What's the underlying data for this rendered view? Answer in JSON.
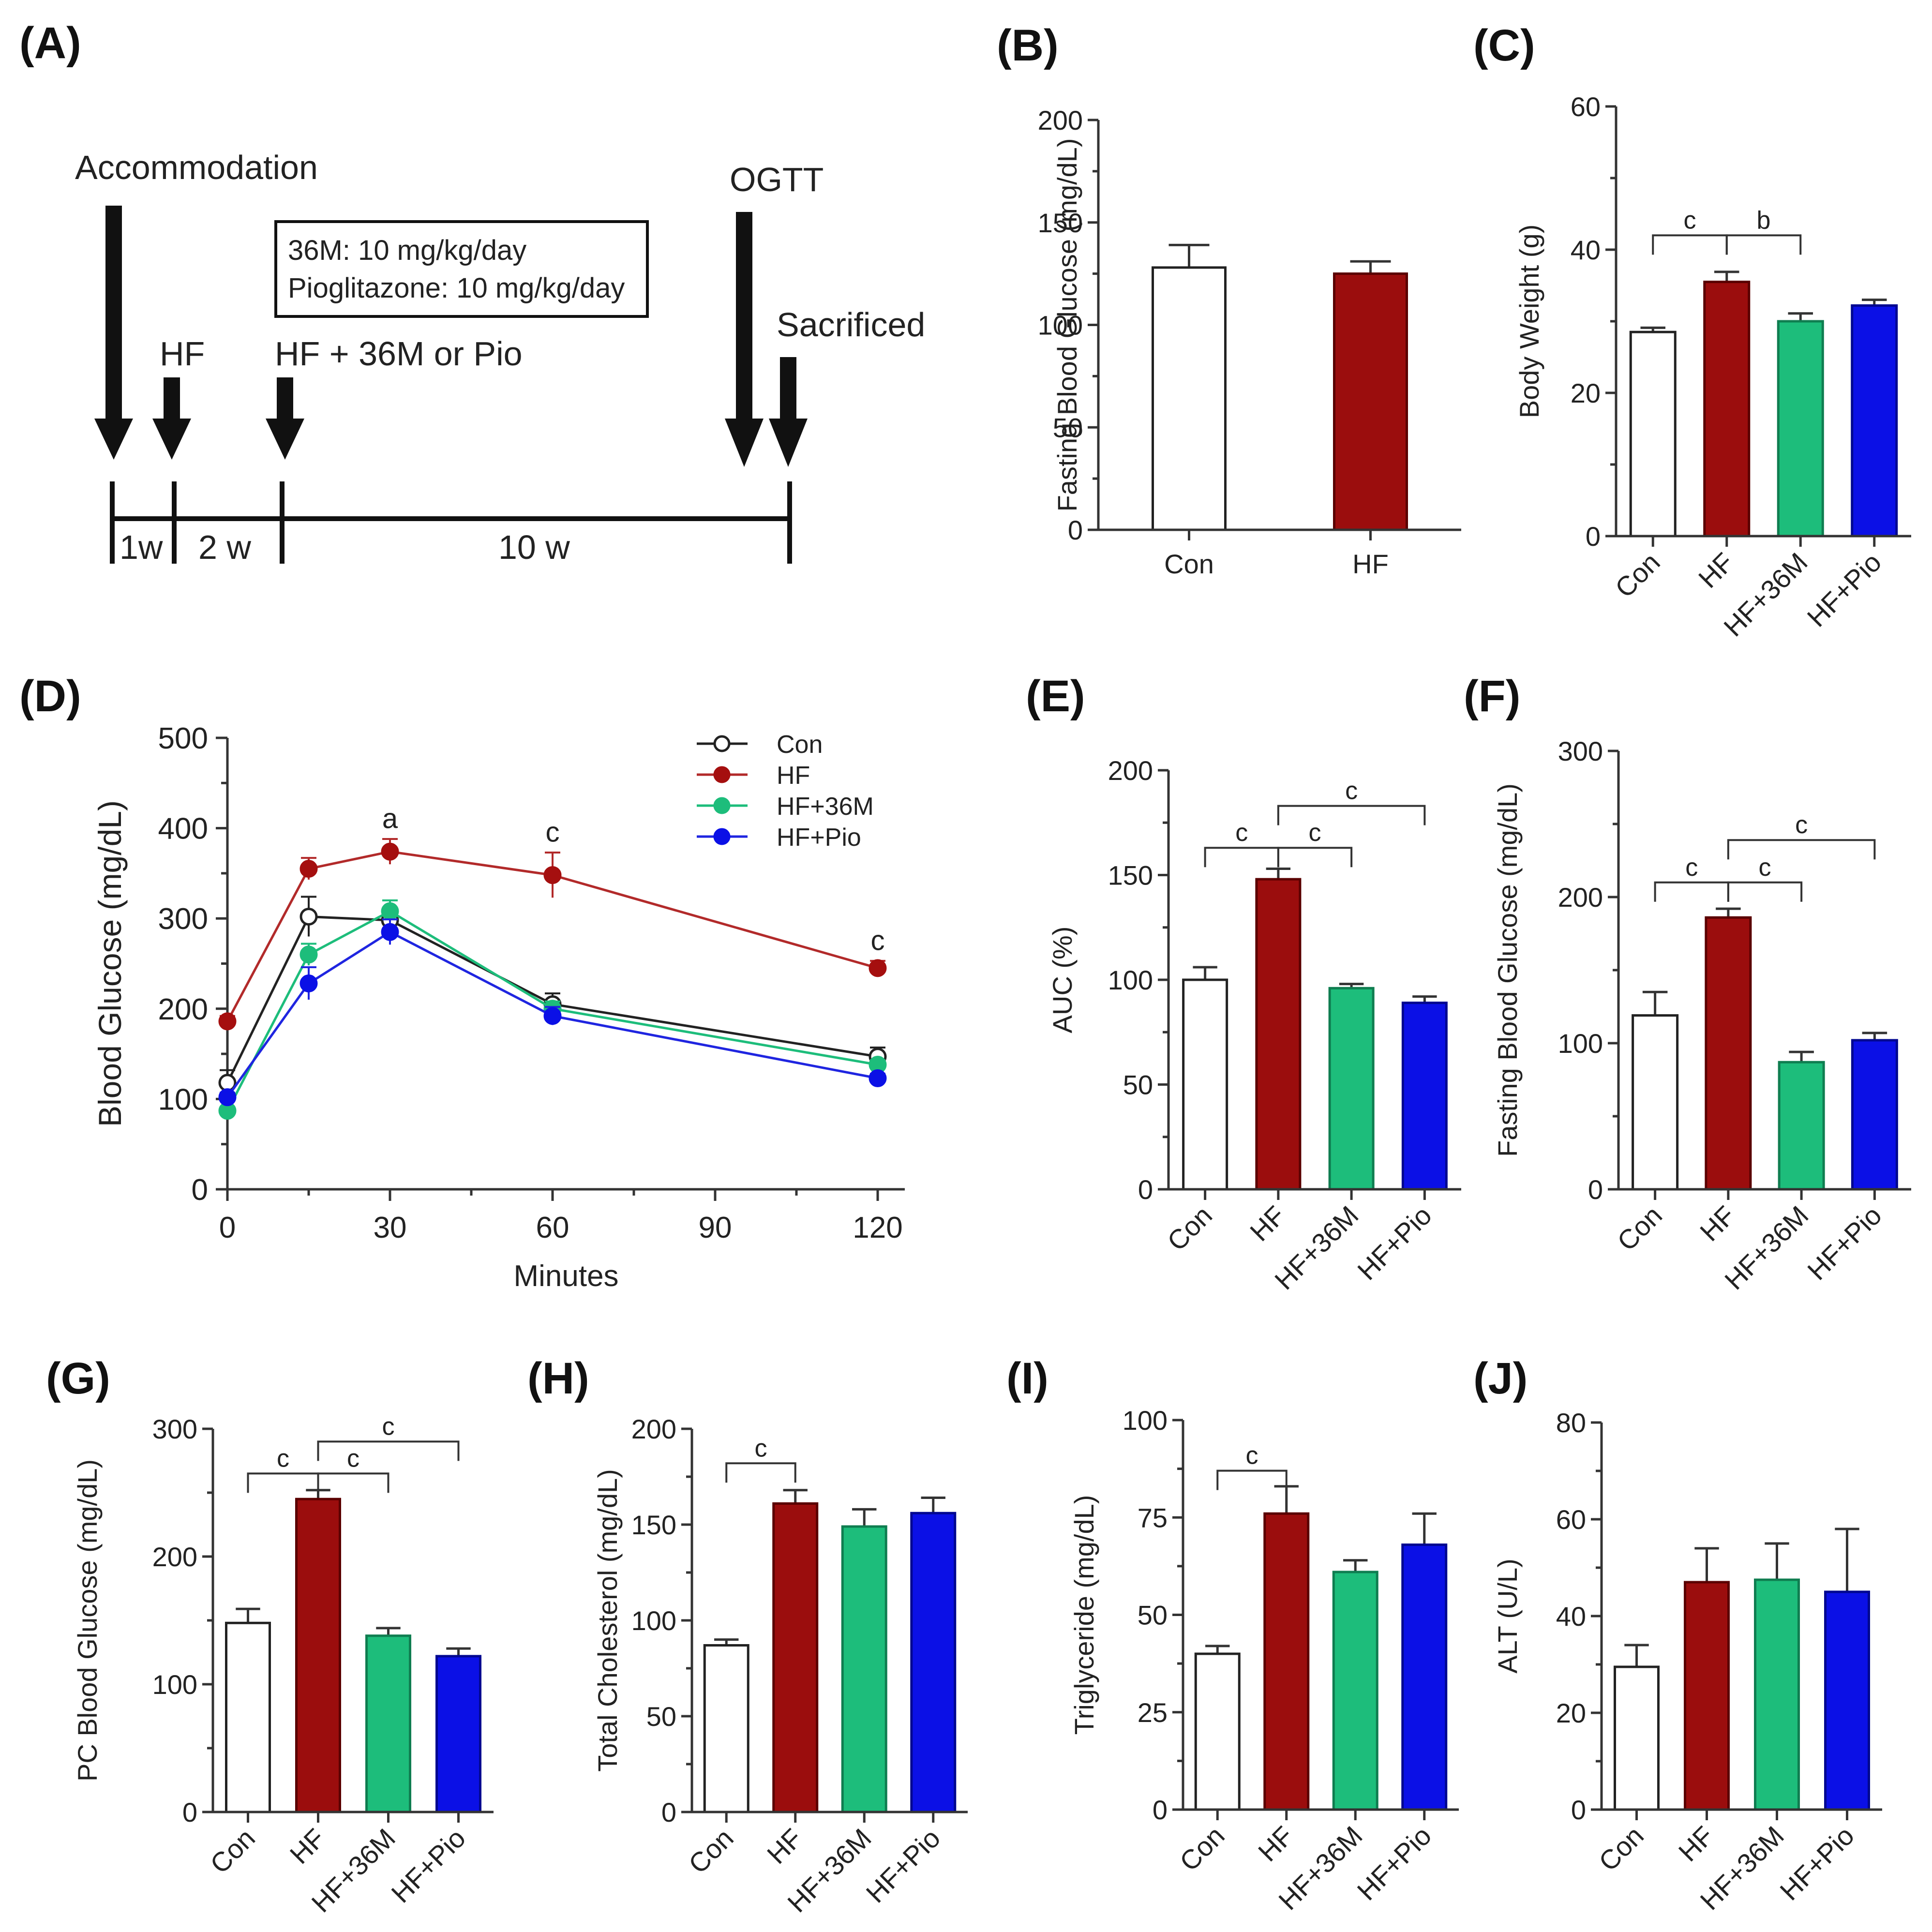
{
  "colors": {
    "Con": "#ffffff",
    "HF": "#9b0d0d",
    "HF+36M": "#1dbd7b",
    "HF+Pio": "#0b10e6"
  },
  "panel_a": {
    "label": "(A)",
    "accommodation": "Accommodation",
    "hf": "HF",
    "hf_treat": "HF + 36M or Pio",
    "ogtt": "OGTT",
    "sacrificed": "Sacrificed",
    "box_line1": "36M: 10 mg/kg/day",
    "box_line2": "Pioglitazone: 10 mg/kg/day",
    "w1": "1w",
    "w2": "2 w",
    "w3": "10 w"
  },
  "chart_data": [
    {
      "id": "B",
      "label": "(B)",
      "type": "bar",
      "categories": [
        "Con",
        "HF"
      ],
      "values": [
        128,
        125
      ],
      "errors": [
        11,
        6
      ],
      "ylabel": "Fasting Blood Glucose (mg/dL)",
      "ylim": [
        0,
        200
      ],
      "yticks": [
        0,
        50,
        100,
        150,
        200
      ],
      "significance": []
    },
    {
      "id": "C",
      "label": "(C)",
      "type": "bar",
      "categories": [
        "Con",
        "HF",
        "HF+36M",
        "HF+Pio"
      ],
      "values": [
        28.5,
        35.5,
        30,
        32.2
      ],
      "errors": [
        0.6,
        1.4,
        1.1,
        0.8
      ],
      "ylabel": "Body Weight (g)",
      "ylim": [
        0,
        60
      ],
      "yticks": [
        0,
        20,
        40,
        60
      ],
      "significance": [
        {
          "from": 0,
          "to": 1,
          "level": 42,
          "text": "c"
        },
        {
          "from": 1,
          "to": 2,
          "level": 42,
          "text": "b"
        }
      ]
    },
    {
      "id": "D",
      "label": "(D)",
      "type": "line",
      "x": [
        0,
        15,
        30,
        60,
        120
      ],
      "xlabel": "Minutes",
      "ylabel": "Blood Glucose (mg/dL)",
      "xlim": [
        0,
        125
      ],
      "xticks": [
        0,
        30,
        60,
        90,
        120
      ],
      "ylim": [
        0,
        500
      ],
      "yticks": [
        0,
        100,
        200,
        300,
        400,
        500
      ],
      "series": [
        {
          "name": "Con",
          "values": [
            118,
            302,
            298,
            205,
            147
          ],
          "errors": [
            14,
            22,
            12,
            12,
            10
          ]
        },
        {
          "name": "HF",
          "values": [
            186,
            355,
            374,
            348,
            245
          ],
          "errors": [
            6,
            12,
            14,
            25,
            8
          ]
        },
        {
          "name": "HF+36M",
          "values": [
            87,
            260,
            308,
            200,
            138
          ],
          "errors": [
            4,
            12,
            12,
            8,
            5
          ]
        },
        {
          "name": "HF+Pio",
          "values": [
            102,
            228,
            285,
            192,
            123
          ],
          "errors": [
            5,
            18,
            14,
            10,
            5
          ]
        }
      ],
      "annotations": [
        {
          "x": 30,
          "y": 400,
          "text": "a"
        },
        {
          "x": 60,
          "y": 385,
          "text": "c"
        },
        {
          "x": 120,
          "y": 265,
          "text": "c"
        }
      ]
    },
    {
      "id": "E",
      "label": "(E)",
      "type": "bar",
      "categories": [
        "Con",
        "HF",
        "HF+36M",
        "HF+Pio"
      ],
      "values": [
        100,
        148,
        96,
        89
      ],
      "errors": [
        6,
        5,
        2,
        3
      ],
      "ylabel": "AUC (%)",
      "ylim": [
        0,
        200
      ],
      "yticks": [
        0,
        50,
        100,
        150,
        200
      ],
      "significance": [
        {
          "from": 0,
          "to": 1,
          "level": 163,
          "text": "c"
        },
        {
          "from": 1,
          "to": 2,
          "level": 163,
          "text": "c"
        },
        {
          "from": 1,
          "to": 3,
          "level": 183,
          "text": "c"
        }
      ]
    },
    {
      "id": "F",
      "label": "(F)",
      "type": "bar",
      "categories": [
        "Con",
        "HF",
        "HF+36M",
        "HF+Pio"
      ],
      "values": [
        119,
        186,
        87,
        102
      ],
      "errors": [
        16,
        6,
        7,
        5
      ],
      "ylabel": "Fasting Blood Glucose (mg/dL)",
      "ylim": [
        0,
        300
      ],
      "yticks": [
        0,
        100,
        200,
        300
      ],
      "significance": [
        {
          "from": 0,
          "to": 1,
          "level": 210,
          "text": "c"
        },
        {
          "from": 1,
          "to": 2,
          "level": 210,
          "text": "c"
        },
        {
          "from": 1,
          "to": 3,
          "level": 239,
          "text": "c"
        }
      ]
    },
    {
      "id": "G",
      "label": "(G)",
      "type": "bar",
      "categories": [
        "Con",
        "HF",
        "HF+36M",
        "HF+Pio"
      ],
      "values": [
        148,
        245,
        138,
        122
      ],
      "errors": [
        11,
        7,
        6,
        6
      ],
      "ylabel": "PC Blood Glucose (mg/dL)",
      "ylim": [
        0,
        300
      ],
      "yticks": [
        0,
        100,
        200,
        300
      ],
      "significance": [
        {
          "from": 0,
          "to": 1,
          "level": 265,
          "text": "c"
        },
        {
          "from": 1,
          "to": 2,
          "level": 265,
          "text": "c"
        },
        {
          "from": 1,
          "to": 3,
          "level": 290,
          "text": "c"
        }
      ]
    },
    {
      "id": "H",
      "label": "(H)",
      "type": "bar",
      "categories": [
        "Con",
        "HF",
        "HF+36M",
        "HF+Pio"
      ],
      "values": [
        87,
        161,
        149,
        156
      ],
      "errors": [
        3,
        7,
        9,
        8
      ],
      "ylabel": "Total Cholesterol (mg/dL)",
      "ylim": [
        0,
        200
      ],
      "yticks": [
        0,
        50,
        100,
        150,
        200
      ],
      "significance": [
        {
          "from": 0,
          "to": 1,
          "level": 182,
          "text": "c"
        }
      ]
    },
    {
      "id": "I",
      "label": "(I)",
      "type": "bar",
      "categories": [
        "Con",
        "HF",
        "HF+36M",
        "HF+Pio"
      ],
      "values": [
        40,
        76,
        61,
        68
      ],
      "errors": [
        2,
        7,
        3,
        8
      ],
      "ylabel": "Triglyceride (mg/dL)",
      "ylim": [
        0,
        100
      ],
      "yticks": [
        0,
        25,
        50,
        75,
        100
      ],
      "significance": [
        {
          "from": 0,
          "to": 1,
          "level": 87,
          "text": "c"
        }
      ]
    },
    {
      "id": "J",
      "label": "(J)",
      "type": "bar",
      "categories": [
        "Con",
        "HF",
        "HF+36M",
        "HF+Pio"
      ],
      "values": [
        29.5,
        47,
        47.5,
        45
      ],
      "errors": [
        4.5,
        7,
        7.5,
        13
      ],
      "ylabel": "ALT (U/L)",
      "ylim": [
        0,
        80
      ],
      "yticks": [
        0,
        20,
        40,
        60,
        80
      ],
      "significance": []
    }
  ]
}
